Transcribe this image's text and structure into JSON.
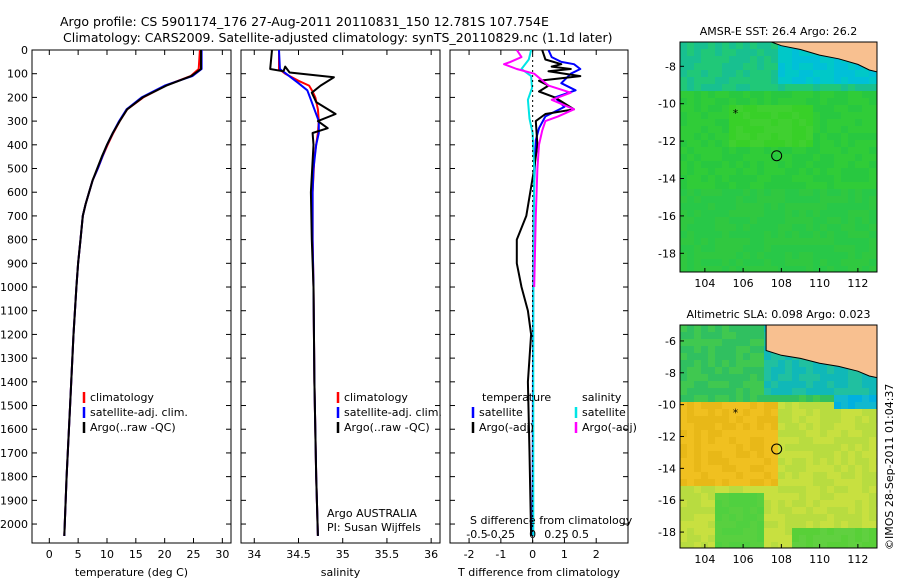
{
  "header": {
    "line1": "Argo profile: CS 5901174_176 27-Aug-2011 20110831_150 12.781S 107.754E",
    "line2": "Climatology: CARS2009. Satellite-adjusted climatology: synTS_20110829.nc (1.1d later)"
  },
  "side_label": "©IMOS 28-Sep-2011 01:04:37",
  "colors": {
    "climatology": "#ff0000",
    "satellite": "#0000ff",
    "argo": "#000000",
    "sat_s": "#00e5e5",
    "argo_s": "#ff00ff",
    "land": "#f8c090"
  },
  "chart_data": [
    {
      "type": "line",
      "id": "temperature",
      "xlabel": "temperature (deg C)",
      "xlim": [
        -3,
        31.5
      ],
      "xticks": [
        0,
        5,
        10,
        15,
        20,
        25,
        30
      ],
      "ylim": [
        0,
        2080
      ],
      "yticks": [
        0,
        100,
        200,
        300,
        400,
        500,
        600,
        700,
        800,
        900,
        1000,
        1100,
        1200,
        1300,
        1400,
        1500,
        1600,
        1700,
        1800,
        1900,
        2000
      ],
      "legend": [
        "climatology",
        "satellite-adj. clim.",
        "Argo(..raw -QC)"
      ],
      "series": [
        {
          "name": "climatology",
          "color": "#ff0000",
          "x": [
            26.1,
            25.9,
            24.5,
            20.2,
            16.3,
            13.5,
            12.2,
            11.1,
            10.1,
            9.2,
            8.4,
            7.5,
            6.9,
            6.3,
            5.8,
            5.4,
            5.0,
            4.7,
            4.2,
            3.6,
            3.0,
            2.6
          ],
          "y": [
            0,
            80,
            110,
            150,
            200,
            250,
            300,
            350,
            400,
            450,
            500,
            550,
            600,
            650,
            700,
            800,
            900,
            1000,
            1200,
            1500,
            1800,
            2050
          ]
        },
        {
          "name": "satellite-adj. clim.",
          "color": "#0000ff",
          "x": [
            26.4,
            26.4,
            24.8,
            20.0,
            16.0,
            13.4,
            12.1,
            11.0,
            10.0,
            9.2,
            8.4,
            7.5,
            6.9,
            6.3,
            5.8,
            5.4,
            5.0,
            4.7,
            4.2,
            3.6,
            3.0,
            2.6
          ],
          "y": [
            0,
            80,
            110,
            150,
            200,
            250,
            300,
            350,
            400,
            450,
            500,
            550,
            600,
            650,
            700,
            800,
            900,
            1000,
            1200,
            1500,
            1800,
            2050
          ]
        },
        {
          "name": "Argo(..raw -QC)",
          "color": "#000000",
          "x": [
            26.3,
            26.3,
            24.6,
            20.3,
            16.2,
            13.5,
            12.2,
            11.0,
            10.0,
            9.1,
            8.3,
            7.5,
            6.9,
            6.3,
            5.8,
            5.4,
            5.0,
            4.7,
            4.2,
            3.6,
            3.0,
            2.6
          ],
          "y": [
            0,
            80,
            110,
            150,
            200,
            250,
            300,
            350,
            400,
            450,
            500,
            550,
            600,
            650,
            700,
            800,
            900,
            1000,
            1200,
            1500,
            1800,
            2050
          ]
        }
      ]
    },
    {
      "type": "line",
      "id": "salinity",
      "xlabel": "salinity",
      "xlim": [
        33.85,
        36.1
      ],
      "xticks": [
        34,
        34.5,
        35,
        35.5,
        36
      ],
      "ylim": [
        0,
        2080
      ],
      "legend": [
        "climatology",
        "satellite-adj. clim.",
        "Argo(..raw -QC)"
      ],
      "annotations": [
        "Argo AUSTRALIA",
        "PI: Susan Wijffels"
      ],
      "series": [
        {
          "name": "climatology",
          "color": "#ff0000",
          "x": [
            34.28,
            34.28,
            34.35,
            34.5,
            34.62,
            34.66,
            34.69,
            34.72,
            34.73,
            34.72,
            34.68,
            34.66,
            34.66,
            34.67,
            34.68,
            34.7,
            34.72
          ],
          "y": [
            0,
            80,
            100,
            130,
            150,
            175,
            200,
            250,
            300,
            350,
            450,
            600,
            800,
            1000,
            1400,
            1800,
            2050
          ]
        },
        {
          "name": "satellite-adj. clim.",
          "color": "#0000ff",
          "x": [
            34.28,
            34.29,
            34.36,
            34.5,
            34.6,
            34.63,
            34.68,
            34.73,
            34.73,
            34.7,
            34.67,
            34.66,
            34.66,
            34.67,
            34.68,
            34.7,
            34.72
          ],
          "y": [
            0,
            80,
            100,
            140,
            170,
            200,
            250,
            300,
            350,
            400,
            500,
            600,
            800,
            1000,
            1400,
            1800,
            2050
          ]
        },
        {
          "name": "Argo(..raw -QC)",
          "color": "#000000",
          "x": [
            34.2,
            34.18,
            34.33,
            34.35,
            34.4,
            34.9,
            34.75,
            34.65,
            34.7,
            34.92,
            34.72,
            34.83,
            34.66,
            34.67,
            34.64,
            34.65,
            34.67,
            34.68,
            34.7,
            34.72
          ],
          "y": [
            0,
            80,
            90,
            70,
            95,
            115,
            150,
            180,
            220,
            270,
            300,
            330,
            350,
            400,
            600,
            800,
            1000,
            1400,
            1800,
            2050
          ]
        }
      ]
    },
    {
      "type": "line",
      "id": "difference",
      "xlabel": "T difference from climatology",
      "xlabel2": "S difference from climatology",
      "xlim": [
        -2.6,
        3.0
      ],
      "xticks": [
        -2,
        -1,
        0,
        1,
        2
      ],
      "xticks_s": [
        "-0.5",
        "-0.25",
        "0",
        "0.25",
        "0.5"
      ],
      "ylim": [
        0,
        2080
      ],
      "legend_t": {
        "title": "temperature",
        "items": [
          "satellite",
          "Argo(-adj)"
        ]
      },
      "legend_s": {
        "title": "salinity",
        "items": [
          "satellite",
          "Argo(-adj)"
        ]
      },
      "series": [
        {
          "name": "temperature satellite",
          "color": "#0000ff",
          "x": [
            0.5,
            0.6,
            0.9,
            1.3,
            1.5,
            1.2,
            0.9,
            1.35,
            0.7,
            1.0,
            0.4,
            0.2,
            0.1,
            0.08,
            0.05,
            0.03,
            0.02,
            0.01,
            0.0
          ],
          "y": [
            0,
            30,
            50,
            60,
            80,
            100,
            140,
            170,
            200,
            240,
            280,
            330,
            380,
            450,
            550,
            700,
            900,
            1300,
            2050
          ]
        },
        {
          "name": "temperature Argo(-adj)",
          "color": "#000000",
          "x": [
            0.3,
            0.4,
            0.9,
            0.6,
            1.2,
            0.5,
            1.5,
            0.2,
            0.5,
            0.2,
            0.7,
            1.3,
            0.4,
            0.1,
            0.15,
            0.05,
            -0.2,
            -0.5,
            -0.5,
            -0.35,
            -0.15,
            -0.05,
            -0.15,
            -0.1,
            -0.05
          ],
          "y": [
            0,
            40,
            60,
            70,
            80,
            90,
            110,
            130,
            150,
            175,
            200,
            250,
            270,
            300,
            400,
            500,
            700,
            800,
            900,
            1000,
            1100,
            1200,
            1400,
            1700,
            2050
          ]
        },
        {
          "name": "salinity satellite",
          "color": "#00e5e5",
          "x": [
            -0.05,
            -0.12,
            -0.35,
            -0.05,
            -0.02,
            -0.15,
            -0.1,
            0.0,
            0.05,
            0.02,
            0.02
          ],
          "y": [
            0,
            40,
            80,
            110,
            160,
            210,
            290,
            350,
            500,
            1000,
            2050
          ]
        },
        {
          "name": "salinity Argo(-adj)",
          "color": "#ff00ff",
          "x": [
            -0.5,
            -0.35,
            -0.7,
            -0.9,
            -0.5,
            0.05,
            0.5,
            1.2,
            0.6,
            1.3,
            0.8,
            0.4,
            0.3,
            0.2,
            0.15,
            0.1,
            0.05
          ],
          "y": [
            0,
            30,
            50,
            60,
            80,
            100,
            150,
            180,
            210,
            250,
            280,
            300,
            340,
            400,
            500,
            700,
            1000
          ]
        }
      ]
    },
    {
      "type": "heatmap",
      "id": "sst",
      "title": "AMSR-E SST: 26.4 Argo: 26.2",
      "xlim": [
        102.7,
        113.0
      ],
      "ylim": [
        -19,
        -6.7
      ],
      "xticks": [
        104,
        106,
        108,
        110,
        112
      ],
      "yticks": [
        -8,
        -10,
        -12,
        -14,
        -16,
        -18
      ],
      "profile_position": [
        107.754,
        -12.781
      ],
      "track_marker": [
        105.6,
        -10.5
      ]
    },
    {
      "type": "heatmap",
      "id": "sla",
      "title": "Altimetric SLA: 0.098 Argo: 0.023",
      "xlim": [
        102.7,
        113.0
      ],
      "ylim": [
        -19,
        -5
      ],
      "xticks": [
        104,
        106,
        108,
        110,
        112
      ],
      "yticks": [
        -6,
        -8,
        -10,
        -12,
        -14,
        -16,
        -18
      ],
      "profile_position": [
        107.754,
        -12.781
      ],
      "track_marker": [
        105.6,
        -10.5
      ]
    }
  ]
}
